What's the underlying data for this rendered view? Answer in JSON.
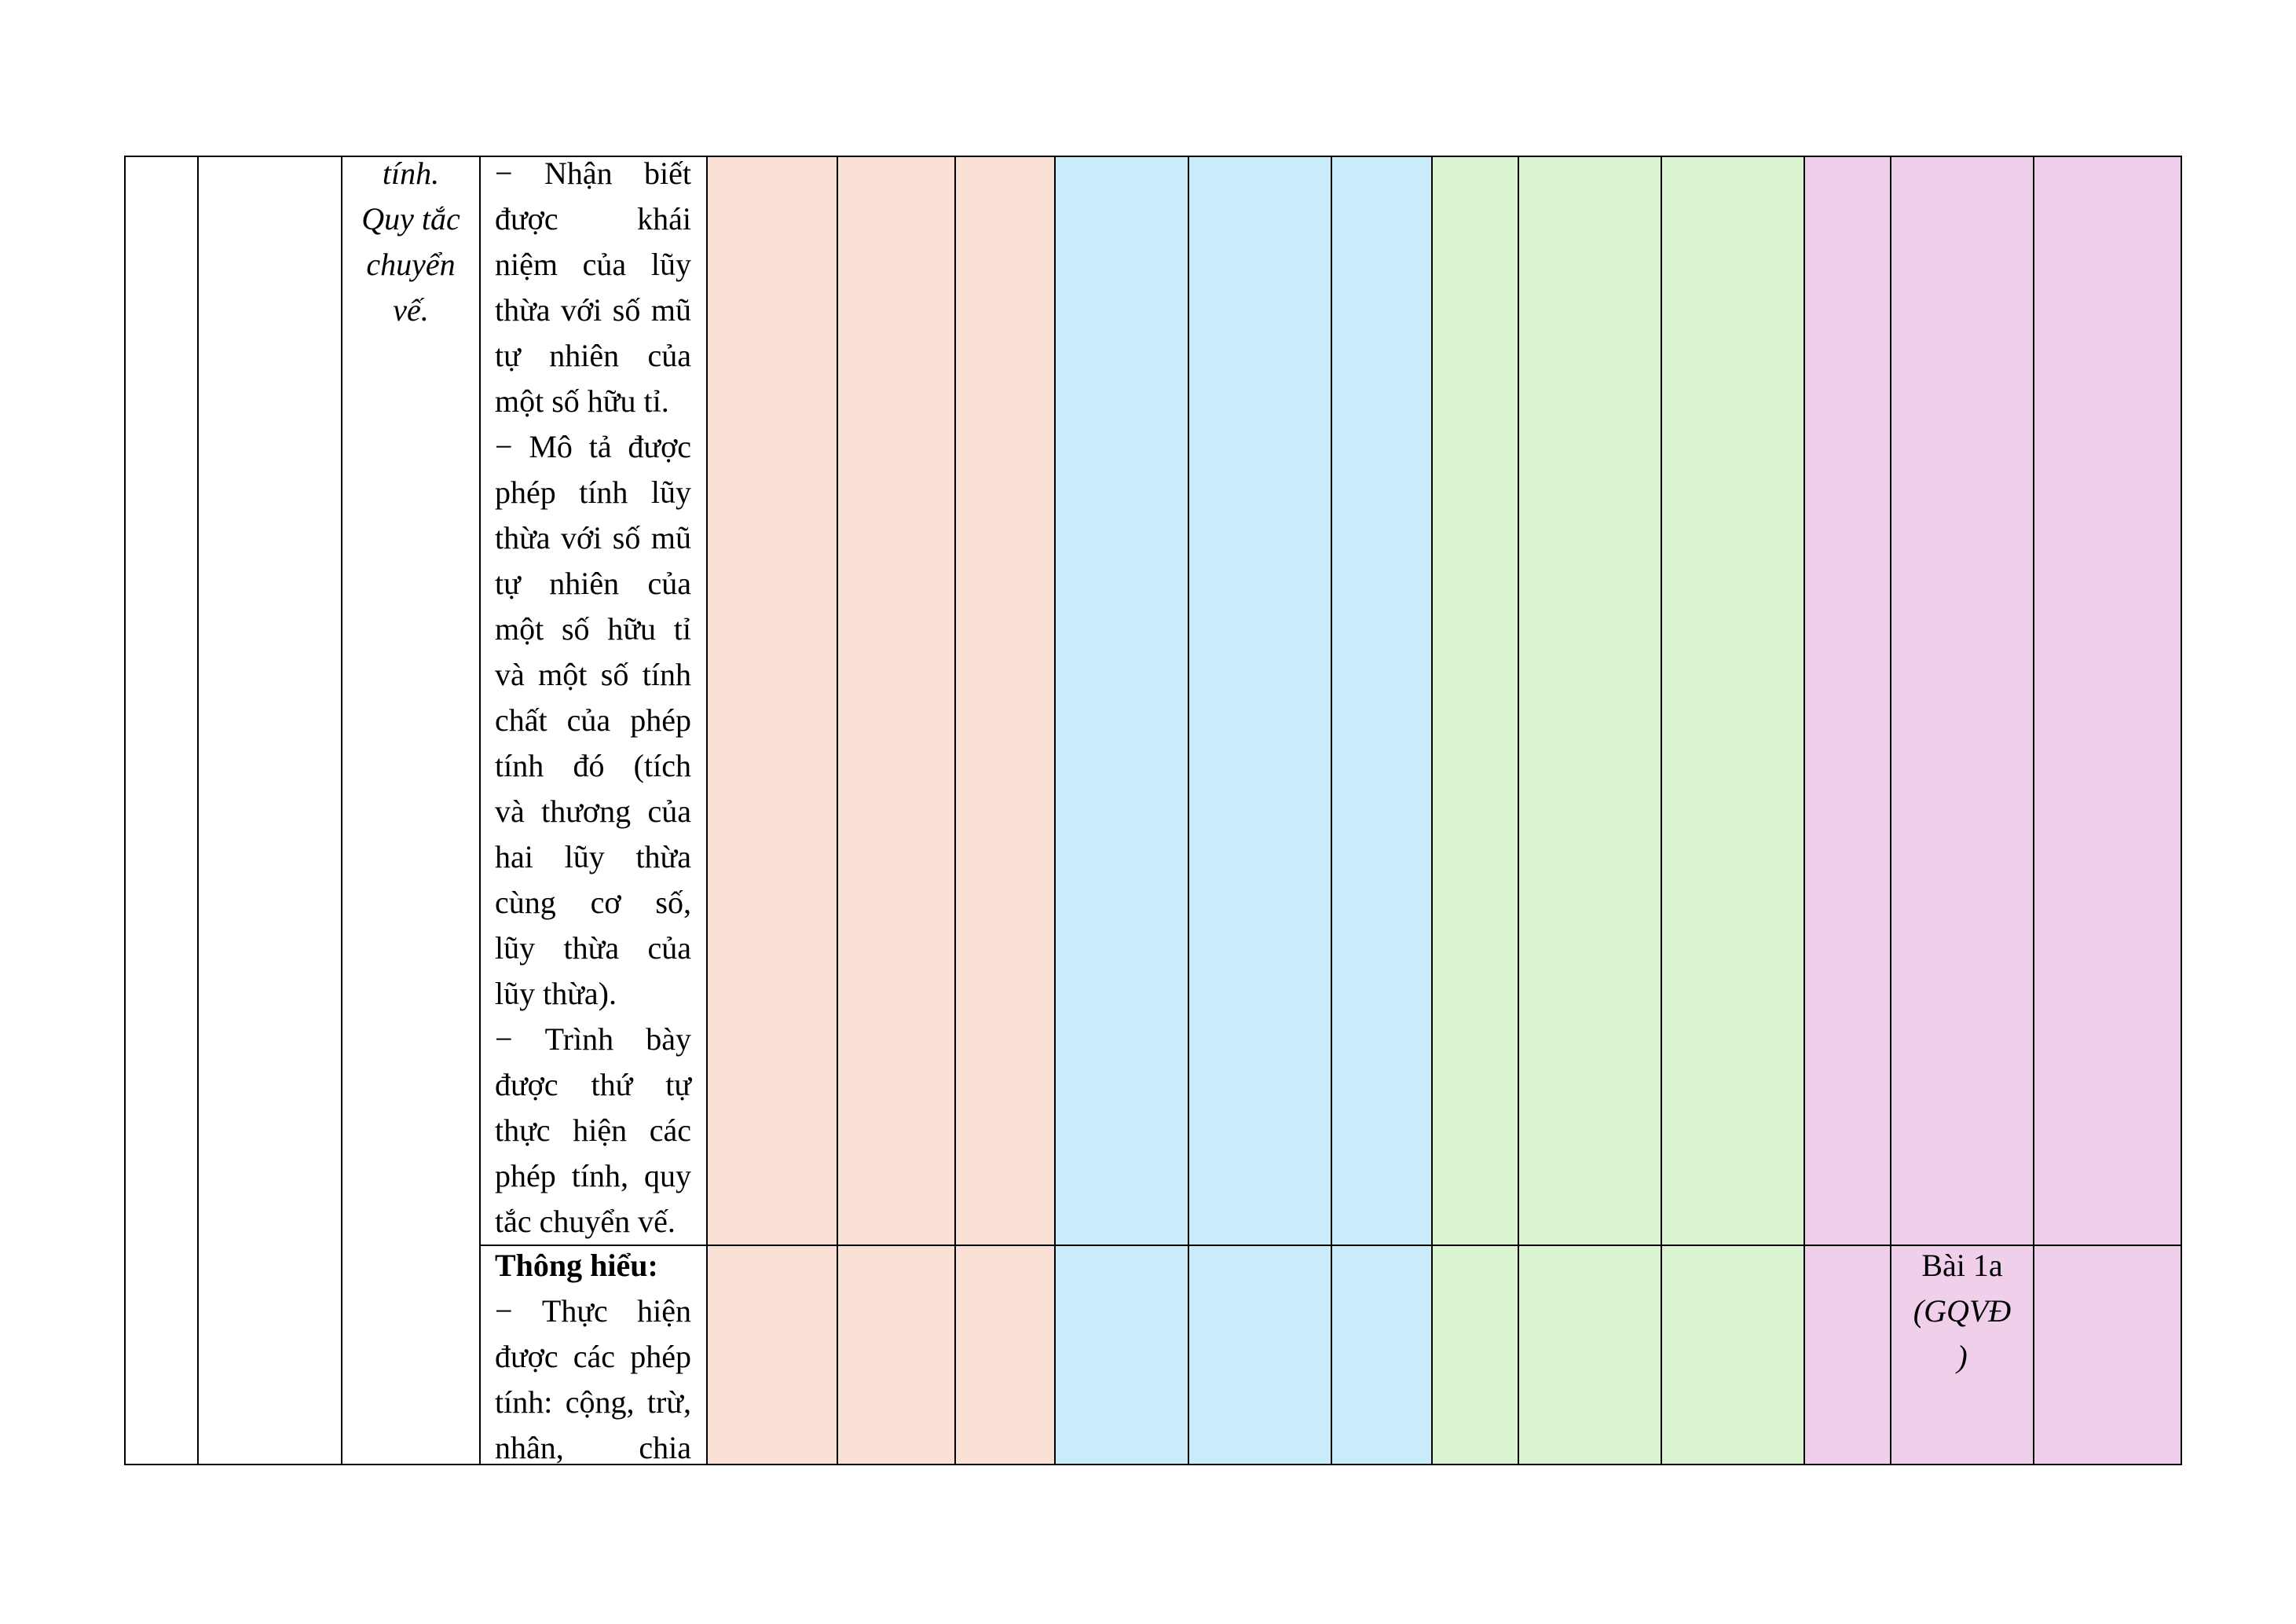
{
  "colors": {
    "peach": "#fae0d5",
    "blue": "#c8ecf9",
    "green": "#daf3d0",
    "pink": "#f0cfeb",
    "border": "#000000"
  },
  "content_cell": {
    "lines": [
      "tính.",
      "Quy tắc",
      "chuyển",
      "vế."
    ]
  },
  "requirement_cell": {
    "lines": [
      "− Nhận biết",
      "được khái",
      "niệm của lũy",
      "thừa với số mũ",
      "tự nhiên của",
      "một số hữu tỉ.",
      "− Mô tả được",
      "phép tính lũy",
      "thừa với số mũ",
      "tự nhiên của",
      "một số hữu tỉ",
      "và một số tính",
      "chất của phép",
      "tính đó (tích",
      "và thương của",
      "hai lũy thừa",
      "cùng cơ số,",
      "lũy thừa của",
      "lũy thừa).",
      "− Trình bày",
      "được thứ tự",
      "thực hiện các",
      "phép tính, quy",
      "tắc chuyển vế."
    ]
  },
  "understanding_cell": {
    "heading": "Thông hiểu:",
    "lines": [
      "− Thực hiện",
      "được các phép",
      "tính: cộng, trừ,",
      "nhân, chia"
    ]
  },
  "question_cell": {
    "lines": [
      "Bài 1a",
      "(GQVĐ",
      ")"
    ]
  }
}
